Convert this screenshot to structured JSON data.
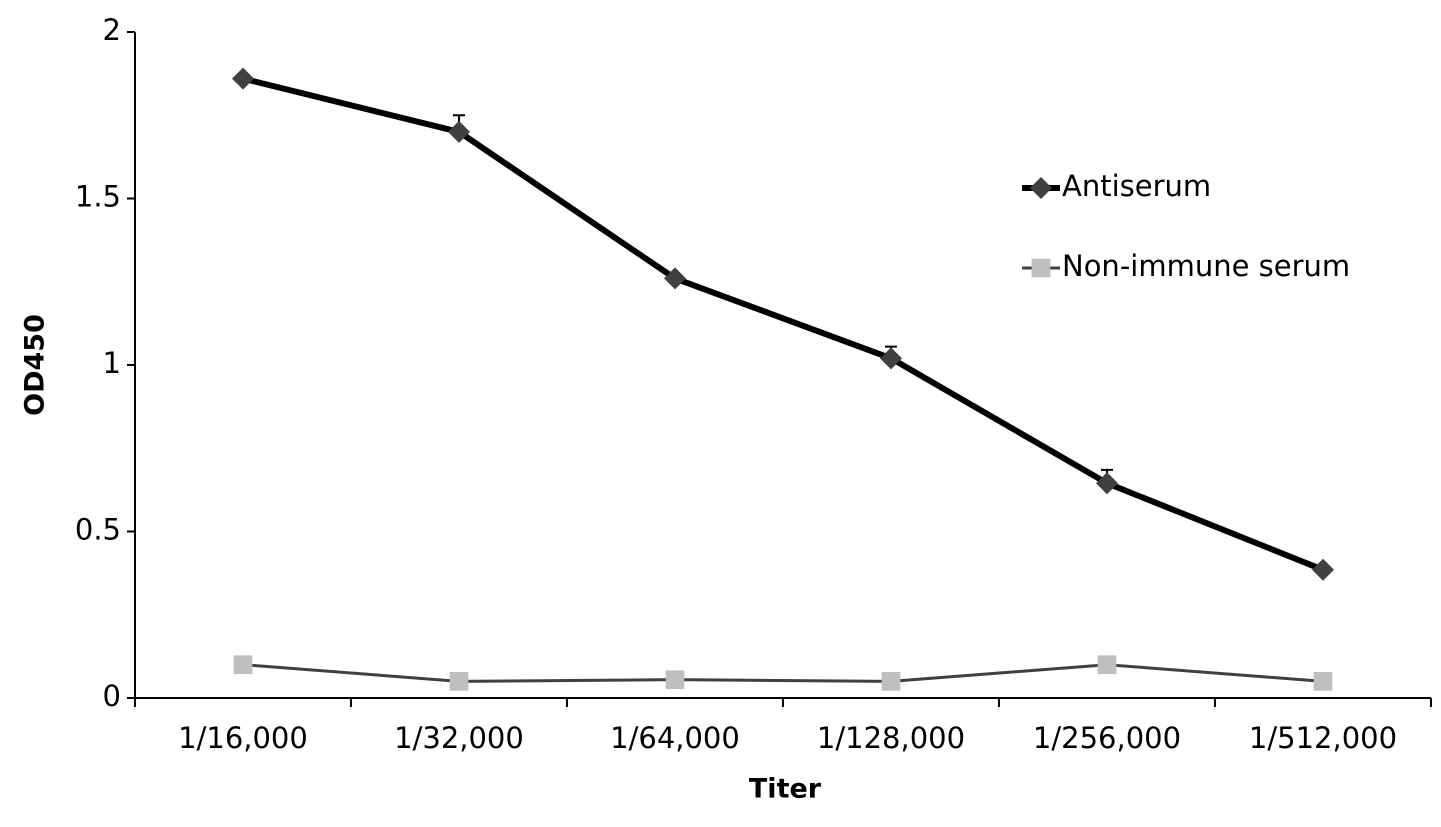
{
  "chart_data": {
    "type": "line",
    "x_label": "Titer",
    "y_label": "OD450",
    "categories": [
      "1/16,000",
      "1/32,000",
      "1/64,000",
      "1/128,000",
      "1/256,000",
      "1/512,000"
    ],
    "series": [
      {
        "name": "Antiserum",
        "color": "#000000",
        "marker_color": "#404040",
        "marker": "diamond",
        "line_width": 6,
        "values": [
          1.86,
          1.7,
          1.26,
          1.02,
          0.645,
          0.385
        ],
        "errors": [
          0,
          0.05,
          0,
          0.035,
          0.04,
          0
        ]
      },
      {
        "name": "Non-immune serum",
        "color": "#404040",
        "marker_color": "#bfbfbf",
        "marker": "square",
        "line_width": 3,
        "values": [
          0.1,
          0.05,
          0.055,
          0.05,
          0.1,
          0.05
        ]
      }
    ],
    "ylim": [
      0,
      2
    ],
    "yticks": [
      0,
      0.5,
      1,
      1.5,
      2
    ],
    "grid": false,
    "legend": "upper right"
  }
}
